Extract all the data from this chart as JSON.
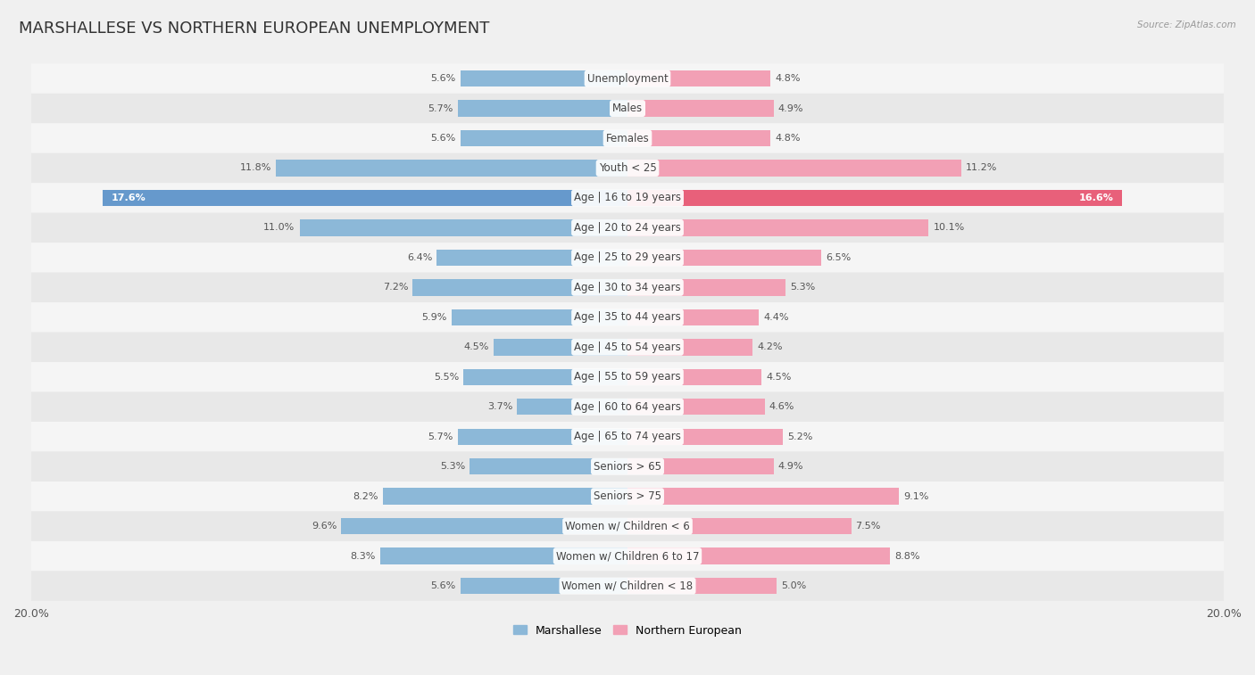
{
  "title": "MARSHALLESE VS NORTHERN EUROPEAN UNEMPLOYMENT",
  "source": "Source: ZipAtlas.com",
  "categories": [
    "Unemployment",
    "Males",
    "Females",
    "Youth < 25",
    "Age | 16 to 19 years",
    "Age | 20 to 24 years",
    "Age | 25 to 29 years",
    "Age | 30 to 34 years",
    "Age | 35 to 44 years",
    "Age | 45 to 54 years",
    "Age | 55 to 59 years",
    "Age | 60 to 64 years",
    "Age | 65 to 74 years",
    "Seniors > 65",
    "Seniors > 75",
    "Women w/ Children < 6",
    "Women w/ Children 6 to 17",
    "Women w/ Children < 18"
  ],
  "marshallese": [
    5.6,
    5.7,
    5.6,
    11.8,
    17.6,
    11.0,
    6.4,
    7.2,
    5.9,
    4.5,
    5.5,
    3.7,
    5.7,
    5.3,
    8.2,
    9.6,
    8.3,
    5.6
  ],
  "northern_european": [
    4.8,
    4.9,
    4.8,
    11.2,
    16.6,
    10.1,
    6.5,
    5.3,
    4.4,
    4.2,
    4.5,
    4.6,
    5.2,
    4.9,
    9.1,
    7.5,
    8.8,
    5.0
  ],
  "marshallese_color": "#8cb8d8",
  "northern_european_color": "#f2a0b5",
  "highlight_marshallese_color": "#6699cc",
  "highlight_ne_color": "#e8607a",
  "bg_light": "#f5f5f5",
  "bg_dark": "#e8e8e8",
  "max_value": 20.0,
  "bar_height": 0.55,
  "title_fontsize": 13,
  "cat_fontsize": 8.5,
  "val_fontsize": 8.0,
  "legend_fontsize": 9,
  "highlight_row": 4
}
